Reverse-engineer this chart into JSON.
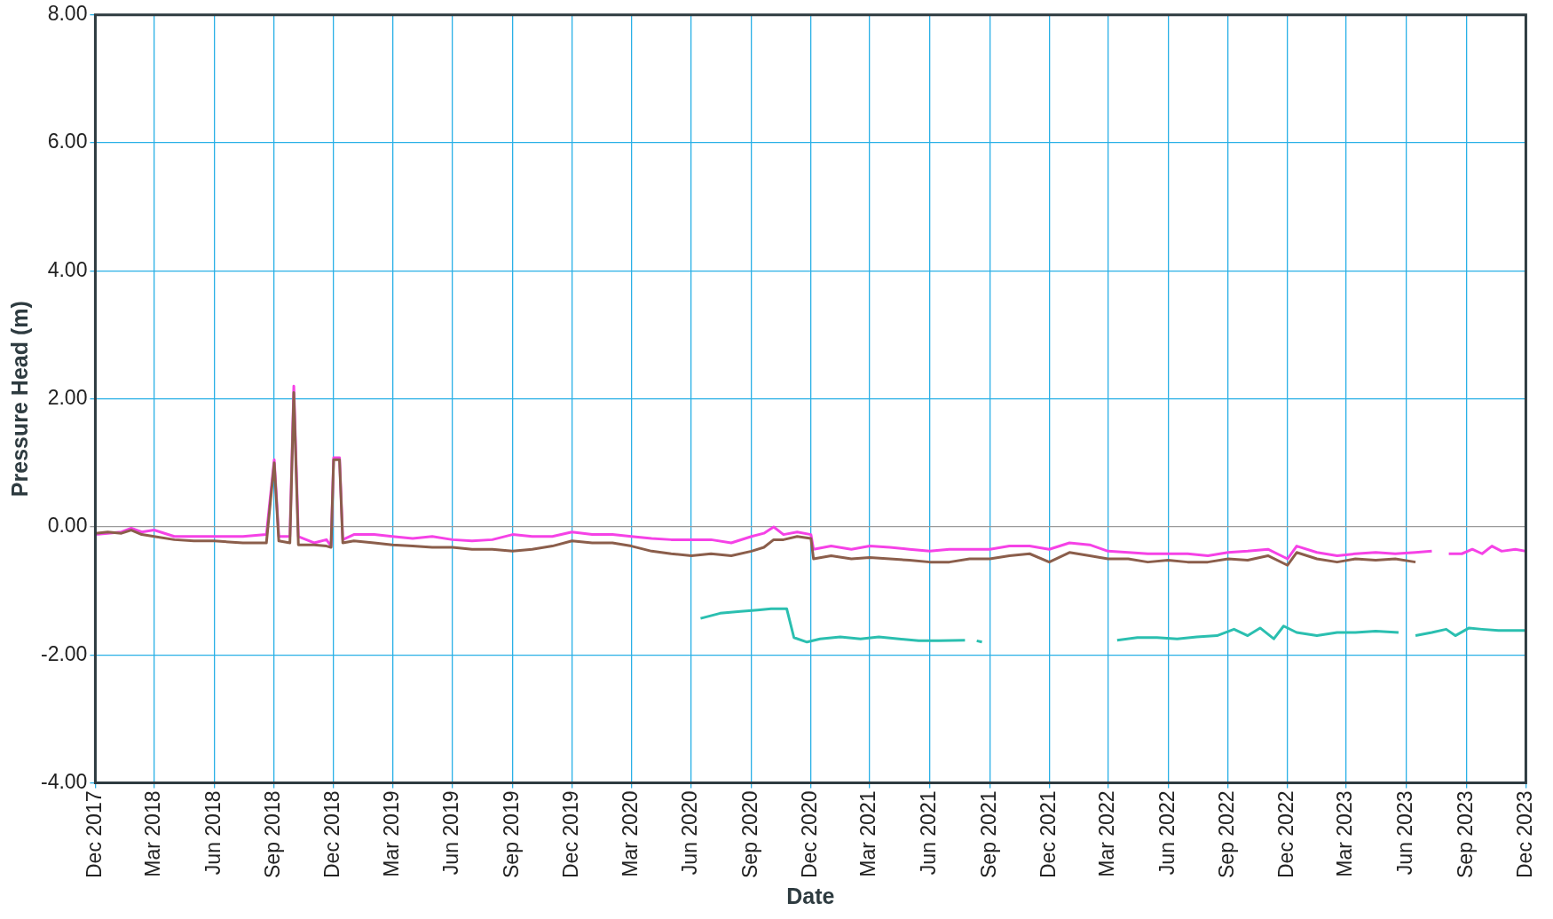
{
  "chart_data": {
    "type": "line",
    "xlabel": "Date",
    "ylabel": "Pressure Head (m)",
    "grid": true,
    "marker": "none",
    "xlim": [
      "2017-12",
      "2023-12"
    ],
    "xticks": [
      {
        "value": "2017-12",
        "label": "Dec 2017"
      },
      {
        "value": "2018-03",
        "label": "Mar 2018"
      },
      {
        "value": "2018-06",
        "label": "Jun 2018"
      },
      {
        "value": "2018-09",
        "label": "Sep 2018"
      },
      {
        "value": "2018-12",
        "label": "Dec 2018"
      },
      {
        "value": "2019-03",
        "label": "Mar 2019"
      },
      {
        "value": "2019-06",
        "label": "Jun 2019"
      },
      {
        "value": "2019-09",
        "label": "Sep 2019"
      },
      {
        "value": "2019-12",
        "label": "Dec 2019"
      },
      {
        "value": "2020-03",
        "label": "Mar 2020"
      },
      {
        "value": "2020-06",
        "label": "Jun 2020"
      },
      {
        "value": "2020-09",
        "label": "Sep 2020"
      },
      {
        "value": "2020-12",
        "label": "Dec 2020"
      },
      {
        "value": "2021-03",
        "label": "Mar 2021"
      },
      {
        "value": "2021-06",
        "label": "Jun 2021"
      },
      {
        "value": "2021-09",
        "label": "Sep 2021"
      },
      {
        "value": "2021-12",
        "label": "Dec 2021"
      },
      {
        "value": "2022-03",
        "label": "Mar 2022"
      },
      {
        "value": "2022-06",
        "label": "Jun 2022"
      },
      {
        "value": "2022-09",
        "label": "Sep 2022"
      },
      {
        "value": "2022-12",
        "label": "Dec 2022"
      },
      {
        "value": "2023-03",
        "label": "Mar 2023"
      },
      {
        "value": "2023-06",
        "label": "Jun 2023"
      },
      {
        "value": "2023-09",
        "label": "Sep 2023"
      },
      {
        "value": "2023-12",
        "label": "Dec 2023"
      }
    ],
    "ylim": [
      -4,
      8
    ],
    "yticks": [
      {
        "value": -4,
        "label": "-4.00"
      },
      {
        "value": -2,
        "label": "-2.00"
      },
      {
        "value": 0,
        "label": "0.00"
      },
      {
        "value": 2,
        "label": "2.00"
      },
      {
        "value": 4,
        "label": "4.00"
      },
      {
        "value": 6,
        "label": "6.00"
      },
      {
        "value": 8,
        "label": "8.00"
      }
    ],
    "series": [
      {
        "color": "#f542e6",
        "x": [
          "2017-12-01",
          "2017-12-20",
          "2018-01-10",
          "2018-01-25",
          "2018-02-10",
          "2018-03-01",
          "2018-04-01",
          "2018-05-01",
          "2018-06-01",
          "2018-07-15",
          "2018-08-20",
          "2018-09-01",
          "2018-09-08",
          "2018-09-25",
          "2018-10-01",
          "2018-10-08",
          "2018-11-01",
          "2018-11-20",
          "2018-11-27",
          "2018-12-01",
          "2018-12-10",
          "2018-12-15",
          "2019-01-01",
          "2019-02-01",
          "2019-03-01",
          "2019-04-01",
          "2019-05-01",
          "2019-06-01",
          "2019-07-01",
          "2019-08-01",
          "2019-09-01",
          "2019-10-01",
          "2019-11-01",
          "2019-12-01",
          "2020-01-01",
          "2020-02-01",
          "2020-03-01",
          "2020-04-01",
          "2020-05-01",
          "2020-06-01",
          "2020-07-01",
          "2020-08-01",
          "2020-09-01",
          "2020-09-20",
          "2020-10-05",
          "2020-10-20",
          "2020-11-10",
          "2020-12-01",
          "2020-12-05",
          "2021-01-01",
          "2021-02-01",
          "2021-03-01",
          "2021-04-01",
          "2021-05-01",
          "2021-06-01",
          "2021-07-01",
          "2021-08-01",
          "2021-09-01",
          "2021-10-01",
          "2021-11-01",
          "2021-12-01",
          "2022-01-01",
          "2022-02-01",
          "2022-03-01",
          "2022-04-01",
          "2022-05-01",
          "2022-06-01",
          "2022-07-01",
          "2022-08-01",
          "2022-09-01",
          "2022-10-01",
          "2022-11-01",
          "2022-12-01",
          "2022-12-15",
          "2023-01-15",
          "2023-02-15",
          "2023-03-15",
          "2023-04-15",
          "2023-05-15",
          "2023-06-15",
          "2023-07-10",
          "2023-07-25",
          "2023-08-05",
          "2023-08-25",
          "2023-09-10",
          "2023-09-25",
          "2023-10-10",
          "2023-10-25",
          "2023-11-15",
          "2023-12-01"
        ],
        "values": [
          -0.12,
          -0.1,
          -0.08,
          -0.02,
          -0.08,
          -0.05,
          -0.15,
          -0.15,
          -0.15,
          -0.15,
          -0.12,
          1.05,
          -0.15,
          -0.15,
          2.2,
          -0.15,
          -0.25,
          -0.2,
          -0.3,
          1.08,
          1.08,
          -0.2,
          -0.12,
          -0.12,
          -0.15,
          -0.18,
          -0.15,
          -0.2,
          -0.22,
          -0.2,
          -0.12,
          -0.15,
          -0.15,
          -0.08,
          -0.12,
          -0.12,
          -0.15,
          -0.18,
          -0.2,
          -0.2,
          -0.2,
          -0.25,
          -0.15,
          -0.1,
          0.0,
          -0.12,
          -0.08,
          -0.12,
          -0.35,
          -0.3,
          -0.35,
          -0.3,
          -0.32,
          -0.35,
          -0.38,
          -0.35,
          -0.35,
          -0.35,
          -0.3,
          -0.3,
          -0.35,
          -0.25,
          -0.28,
          -0.38,
          -0.4,
          -0.42,
          -0.42,
          -0.42,
          -0.45,
          -0.4,
          -0.38,
          -0.35,
          -0.5,
          -0.3,
          -0.4,
          -0.45,
          -0.42,
          -0.4,
          -0.42,
          -0.4,
          -0.38,
          null,
          -0.42,
          -0.42,
          -0.35,
          -0.42,
          -0.3,
          -0.38,
          -0.35,
          -0.38
        ]
      },
      {
        "color": "#8b5e4b",
        "x": [
          "2017-12-01",
          "2017-12-20",
          "2018-01-10",
          "2018-01-25",
          "2018-02-10",
          "2018-03-01",
          "2018-04-01",
          "2018-05-01",
          "2018-06-01",
          "2018-07-15",
          "2018-08-20",
          "2018-09-01",
          "2018-09-08",
          "2018-09-25",
          "2018-10-01",
          "2018-10-08",
          "2018-11-01",
          "2018-11-20",
          "2018-11-27",
          "2018-12-01",
          "2018-12-10",
          "2018-12-15",
          "2019-01-01",
          "2019-02-01",
          "2019-03-01",
          "2019-04-01",
          "2019-05-01",
          "2019-06-01",
          "2019-07-01",
          "2019-08-01",
          "2019-09-01",
          "2019-10-01",
          "2019-11-01",
          "2019-12-01",
          "2020-01-01",
          "2020-02-01",
          "2020-03-01",
          "2020-04-01",
          "2020-05-01",
          "2020-06-01",
          "2020-07-01",
          "2020-08-01",
          "2020-09-01",
          "2020-09-20",
          "2020-10-05",
          "2020-10-20",
          "2020-11-10",
          "2020-12-01",
          "2020-12-05",
          "2021-01-01",
          "2021-02-01",
          "2021-03-01",
          "2021-04-01",
          "2021-05-01",
          "2021-06-01",
          "2021-07-01",
          "2021-08-01",
          "2021-09-01",
          "2021-10-01",
          "2021-11-01",
          "2021-12-01",
          "2022-01-01",
          "2022-02-01",
          "2022-03-01",
          "2022-04-01",
          "2022-05-01",
          "2022-06-01",
          "2022-07-01",
          "2022-08-01",
          "2022-09-01",
          "2022-10-01",
          "2022-11-01",
          "2022-12-01",
          "2022-12-15",
          "2023-01-15",
          "2023-02-15",
          "2023-03-15",
          "2023-04-15",
          "2023-05-15",
          "2023-06-15"
        ],
        "values": [
          -0.1,
          -0.08,
          -0.1,
          -0.05,
          -0.12,
          -0.15,
          -0.2,
          -0.22,
          -0.22,
          -0.25,
          -0.25,
          1.0,
          -0.22,
          -0.25,
          2.1,
          -0.28,
          -0.28,
          -0.3,
          -0.32,
          1.05,
          1.05,
          -0.25,
          -0.22,
          -0.25,
          -0.28,
          -0.3,
          -0.32,
          -0.32,
          -0.35,
          -0.35,
          -0.38,
          -0.35,
          -0.3,
          -0.22,
          -0.25,
          -0.25,
          -0.3,
          -0.38,
          -0.42,
          -0.45,
          -0.42,
          -0.45,
          -0.38,
          -0.32,
          -0.2,
          -0.2,
          -0.15,
          -0.18,
          -0.5,
          -0.45,
          -0.5,
          -0.48,
          -0.5,
          -0.52,
          -0.55,
          -0.55,
          -0.5,
          -0.5,
          -0.45,
          -0.42,
          -0.55,
          -0.4,
          -0.45,
          -0.5,
          -0.5,
          -0.55,
          -0.52,
          -0.55,
          -0.55,
          -0.5,
          -0.52,
          -0.45,
          -0.6,
          -0.4,
          -0.5,
          -0.55,
          -0.5,
          -0.52,
          -0.5,
          -0.55
        ]
      },
      {
        "color": "#2bbfb0",
        "x": [
          "2020-06-15",
          "2020-07-15",
          "2020-08-15",
          "2020-09-10",
          "2020-10-01",
          "2020-10-25",
          "2020-11-05",
          "2020-11-25",
          "2020-12-15",
          "2021-01-15",
          "2021-02-15",
          "2021-03-15",
          "2021-04-15",
          "2021-05-15",
          "2021-06-15",
          "2021-07-25",
          "2021-08-05",
          "2021-08-12",
          "2021-08-20",
          "2021-12-01",
          "2022-03-15",
          "2022-04-15",
          "2022-05-15",
          "2022-06-15",
          "2022-07-15",
          "2022-08-15",
          "2022-09-10",
          "2022-10-01",
          "2022-10-20",
          "2022-11-10",
          "2022-11-25",
          "2022-12-15",
          "2023-01-15",
          "2023-02-15",
          "2023-03-15",
          "2023-04-15",
          "2023-05-20",
          "2023-06-05",
          "2023-06-15",
          "2023-07-10",
          "2023-08-01",
          "2023-08-15",
          "2023-09-05",
          "2023-09-25",
          "2023-10-20",
          "2023-12-01"
        ],
        "values": [
          -1.43,
          -1.35,
          -1.32,
          -1.3,
          -1.28,
          -1.28,
          -1.73,
          -1.8,
          -1.75,
          -1.72,
          -1.75,
          -1.72,
          -1.75,
          -1.78,
          -1.78,
          -1.77,
          null,
          -1.78,
          -1.8,
          null,
          -1.77,
          -1.73,
          -1.73,
          -1.75,
          -1.72,
          -1.7,
          -1.6,
          -1.7,
          -1.58,
          -1.75,
          -1.55,
          -1.65,
          -1.7,
          -1.65,
          -1.65,
          -1.63,
          -1.65,
          null,
          -1.7,
          -1.65,
          -1.6,
          -1.7,
          -1.58,
          -1.6,
          -1.62,
          -1.62
        ]
      }
    ]
  }
}
